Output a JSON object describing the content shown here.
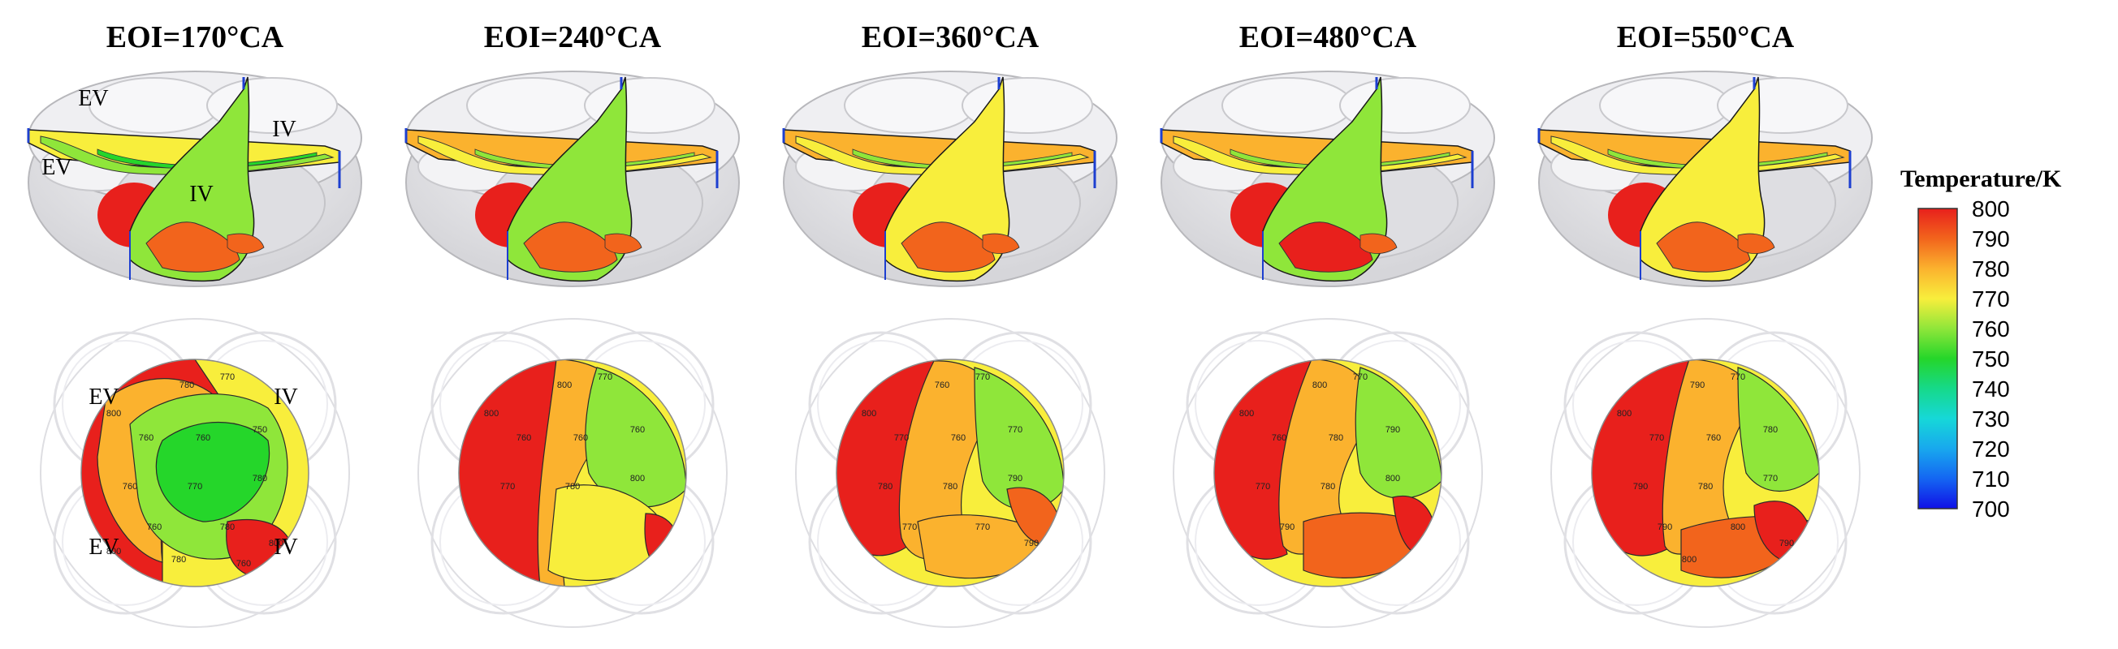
{
  "colors": {
    "c800": "#e8201c",
    "c790": "#f2641c",
    "c780": "#fbb22e",
    "c770": "#f8ee3c",
    "c760": "#8fe63a",
    "c750": "#25d62a",
    "c740": "#16d98a",
    "c730": "#16d8d8",
    "c720": "#18a8ee",
    "c710": "#1466f2",
    "c700": "#1010e6",
    "chamber": "#e9e9ec",
    "outline": "#b8b8bc"
  },
  "panels": [
    {
      "title": "EOI=170°CA",
      "valve_labels_3d": [
        "EV",
        "IV",
        "EV",
        "IV"
      ],
      "valve_labels_top": [
        "EV",
        "IV",
        "EV",
        "IV"
      ],
      "contour_labels": [
        "800",
        "780",
        "770",
        "760",
        "760",
        "750",
        "760",
        "770",
        "780",
        "760",
        "780",
        "800",
        "780",
        "760",
        "800"
      ]
    },
    {
      "title": "EOI=240°CA",
      "contour_labels": [
        "800",
        "800",
        "770",
        "760",
        "760",
        "760",
        "770",
        "780",
        "800"
      ]
    },
    {
      "title": "EOI=360°CA",
      "contour_labels": [
        "800",
        "760",
        "770",
        "770",
        "760",
        "770",
        "780",
        "780",
        "790",
        "770",
        "770",
        "790"
      ]
    },
    {
      "title": "EOI=480°CA",
      "contour_labels": [
        "800",
        "800",
        "770",
        "760",
        "780",
        "790",
        "770",
        "780",
        "800",
        "790"
      ]
    },
    {
      "title": "EOI=550°CA",
      "contour_labels": [
        "800",
        "790",
        "770",
        "770",
        "760",
        "780",
        "790",
        "780",
        "770",
        "790",
        "800",
        "790",
        "800"
      ]
    }
  ],
  "colorbar": {
    "title": "Temperature/K",
    "ticks": [
      "800",
      "790",
      "780",
      "770",
      "760",
      "750",
      "740",
      "730",
      "720",
      "710",
      "700"
    ]
  }
}
